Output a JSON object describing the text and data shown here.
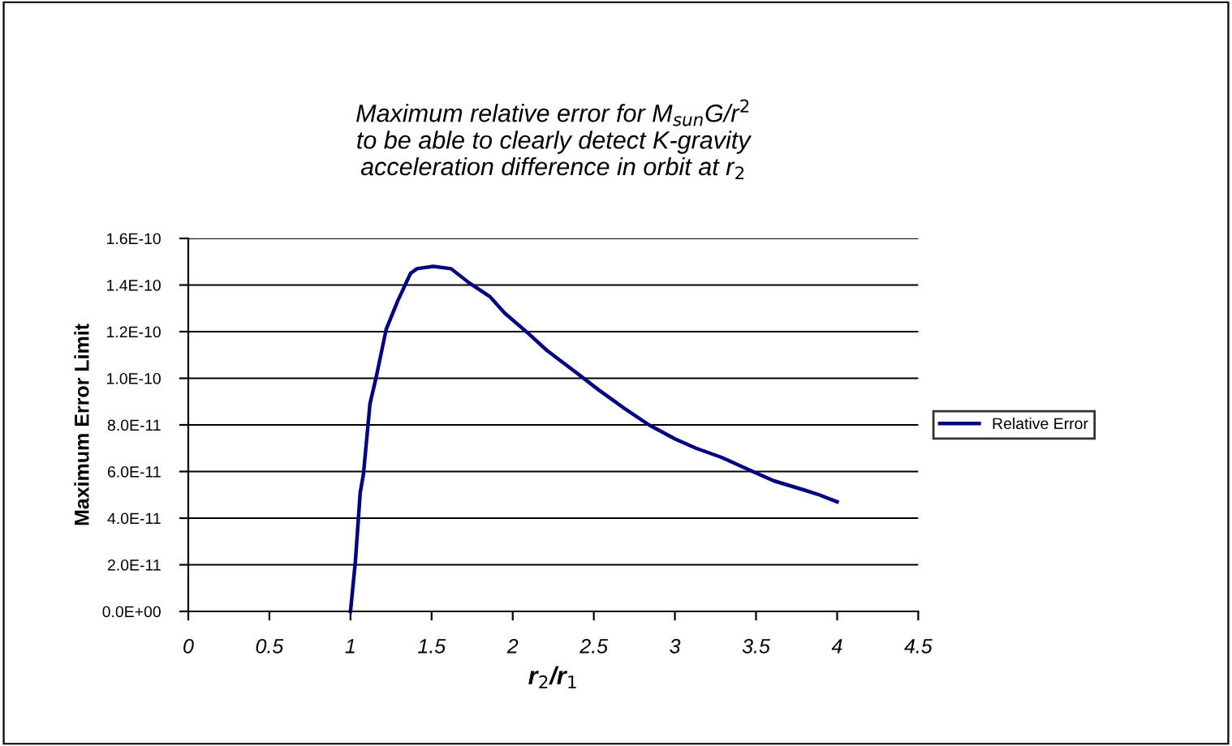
{
  "chart_data": {
    "type": "line",
    "title": "Maximum relative error for M$_{sun}$G/r$^{2}$\nto be able to clearly detect K-gravity\nacceleration difference in orbit at r$_{2}$",
    "xlabel": "r$_{2}$/r$_{1}$",
    "ylabel": "Maximum Error Limit",
    "series": [
      {
        "name": "Relative Error",
        "color": "#000080",
        "x": [
          1.0,
          1.03,
          1.06,
          1.08,
          1.12,
          1.16,
          1.22,
          1.29,
          1.37,
          1.41,
          1.51,
          1.62,
          1.73,
          1.86,
          1.95,
          2.1,
          2.21,
          2.4,
          2.53,
          2.69,
          2.84,
          3.0,
          3.13,
          3.29,
          3.48,
          3.61,
          3.8,
          3.89,
          4.0
        ],
        "values": [
          0,
          2.14e-11,
          5.1e-11,
          5.9e-11,
          8.9e-11,
          1.01e-10,
          1.21e-10,
          1.33e-10,
          1.45e-10,
          1.47e-10,
          1.48e-10,
          1.47e-10,
          1.41e-10,
          1.35e-10,
          1.28e-10,
          1.19e-10,
          1.12e-10,
          1.02e-10,
          9.5e-11,
          8.7e-11,
          8e-11,
          7.4e-11,
          7e-11,
          6.6e-11,
          6e-11,
          5.6e-11,
          5.2e-11,
          5e-11,
          4.7e-11
        ]
      }
    ],
    "xlim": [
      0,
      4.5
    ],
    "xticks": [
      0,
      0.5,
      1,
      1.5,
      2,
      2.5,
      3,
      3.5,
      4,
      4.5
    ],
    "ylim": [
      0,
      1.6e-10
    ],
    "yticks": [
      {
        "value": 0,
        "label": "0.0E+00"
      },
      {
        "value": 2e-11,
        "label": "2.0E-11"
      },
      {
        "value": 4e-11,
        "label": "4.0E-11"
      },
      {
        "value": 6e-11,
        "label": "6.0E-11"
      },
      {
        "value": 8e-11,
        "label": "8.0E-11"
      },
      {
        "value": 1e-10,
        "label": "1.0E-10"
      },
      {
        "value": 1.2e-10,
        "label": "1.2E-10"
      },
      {
        "value": 1.4e-10,
        "label": "1.4E-10"
      },
      {
        "value": 1.6e-10,
        "label": "1.6E-10"
      }
    ],
    "grid": "y",
    "legend": "right",
    "marker": "none",
    "line_style": "solid"
  }
}
